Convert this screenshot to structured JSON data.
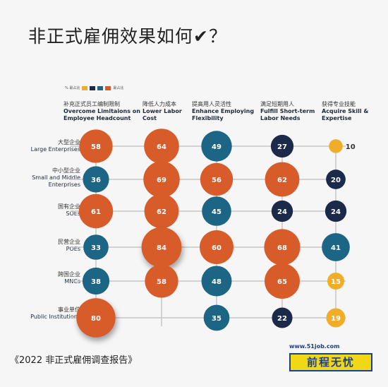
{
  "title": "非正式雇佣效果如何",
  "title_mark": "✔",
  "title_end": "？",
  "legend": {
    "text_left": "% 最占比",
    "text_right": "最占比"
  },
  "colors": {
    "orange": "#d85c2a",
    "teal": "#1c6585",
    "navy": "#1b2a4a",
    "yellow": "#f0ad27",
    "line": "#c6c6c6"
  },
  "columns": [
    {
      "zh": "补充正式员工编制限制",
      "en": "Overcome Limitaions on Employee Headcount"
    },
    {
      "zh": "降低人力成本",
      "en": "Lower Labor Cost"
    },
    {
      "zh": "提高用人灵活性",
      "en": "Enhance Employing Flexibility"
    },
    {
      "zh": "满足短期用人",
      "en": "Fulfill Short-term Labor Needs"
    },
    {
      "zh": "获得专业技能",
      "en": "Acquire Skill & Expertise"
    }
  ],
  "rows": [
    {
      "zh": "大型企业",
      "en": "Large Enterprises"
    },
    {
      "zh": "中小型企业",
      "en": "Small and Middle Enterprises"
    },
    {
      "zh": "国有企业",
      "en": "SOEs"
    },
    {
      "zh": "民营企业",
      "en": "POEs"
    },
    {
      "zh": "跨国企业",
      "en": "MNCs"
    },
    {
      "zh": "事业单位",
      "en": "Public Institutions"
    }
  ],
  "chart_data": {
    "type": "bubble-matrix",
    "unit": "%",
    "categories_x": [
      "Overcome Limitaions on Employee Headcount",
      "Lower Labor Cost",
      "Enhance Employing Flexibility",
      "Fulfill Short-term Labor Needs",
      "Acquire Skill & Expertise"
    ],
    "categories_y": [
      "Large Enterprises",
      "Small and Middle Enterprises",
      "SOEs",
      "POEs",
      "MNCs",
      "Public Institutions"
    ],
    "values": [
      [
        58,
        64,
        49,
        27,
        10
      ],
      [
        36,
        69,
        56,
        62,
        20
      ],
      [
        61,
        62,
        45,
        24,
        24
      ],
      [
        33,
        84,
        60,
        68,
        41
      ],
      [
        38,
        58,
        48,
        65,
        15
      ],
      [
        80,
        null,
        35,
        22,
        19
      ]
    ],
    "color_groups": [
      [
        "orange",
        "orange",
        "teal",
        "navy",
        "yellow"
      ],
      [
        "teal",
        "orange",
        "orange",
        "orange",
        "navy"
      ],
      [
        "orange",
        "orange",
        "teal",
        "navy",
        "navy"
      ],
      [
        "teal",
        "orange",
        "orange",
        "orange",
        "teal"
      ],
      [
        "teal",
        "orange",
        "teal",
        "orange",
        "yellow"
      ],
      [
        "orange",
        null,
        "teal",
        "navy",
        "yellow"
      ]
    ]
  },
  "footer": {
    "source": "《2022 非正式雇佣调查报告》"
  },
  "brand": {
    "url": "www.51job.com",
    "name": "前程无忧"
  }
}
